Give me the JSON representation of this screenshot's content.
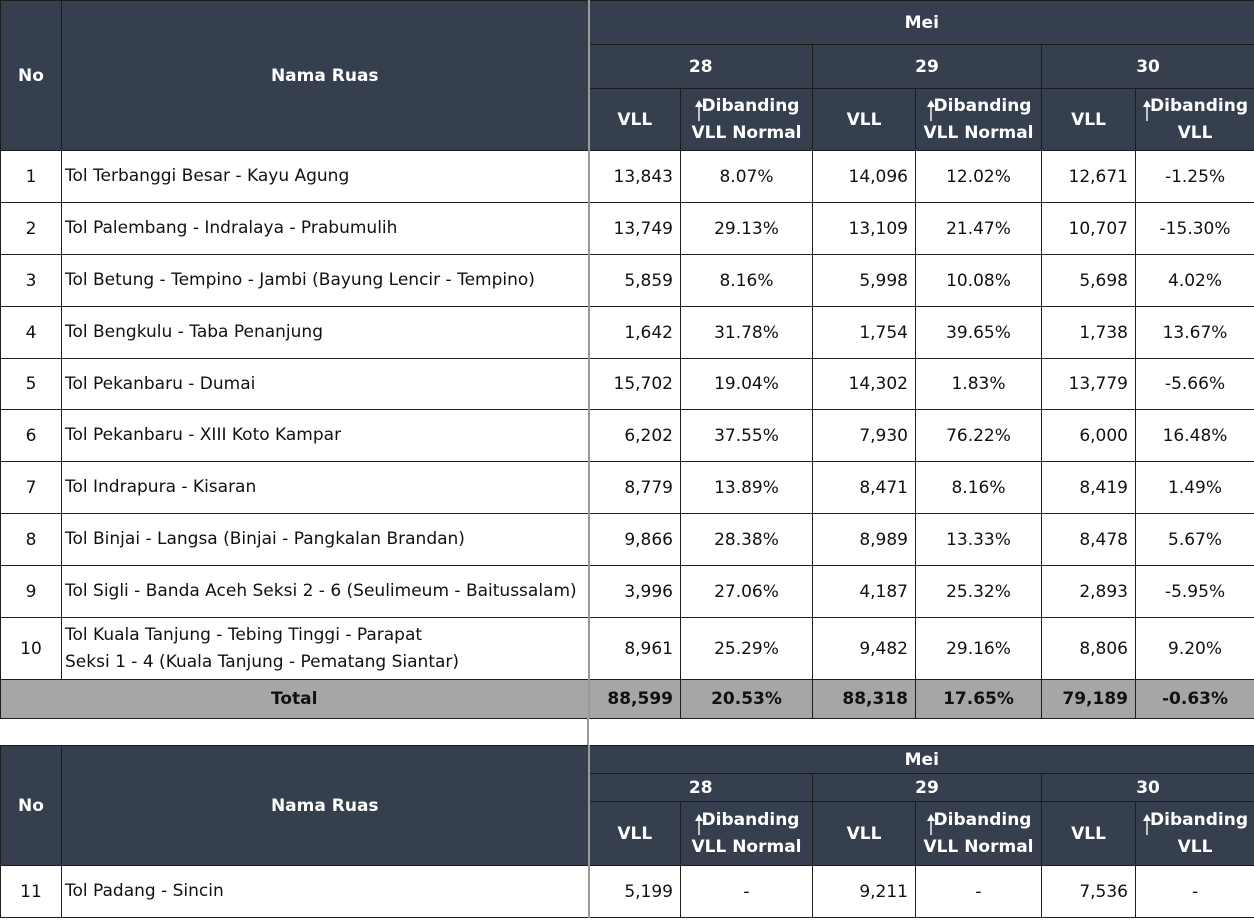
{
  "header": {
    "no": "No",
    "nama_ruas": "Nama Ruas",
    "month": "Mei",
    "days": [
      "28",
      "29",
      "30"
    ],
    "vll": "VLL",
    "cmp_normal_line1": "Dibanding",
    "cmp_normal_line2": "VLL Normal",
    "cmp_vll_line1": "Dibanding",
    "cmp_vll_line2": "VLL",
    "arrow_icon": "up-down-arrow-icon",
    "header_bg": "#353f4e",
    "total_bg": "#a6a6a6"
  },
  "table1": {
    "rows": [
      {
        "no": "1",
        "name": "Tol Terbanggi Besar - Kayu Agung",
        "v28": "13,843",
        "p28": "8.07%",
        "v29": "14,096",
        "p29": "12.02%",
        "v30": "12,671",
        "p30": "-1.25%"
      },
      {
        "no": "2",
        "name": "Tol Palembang - Indralaya - Prabumulih",
        "v28": "13,749",
        "p28": "29.13%",
        "v29": "13,109",
        "p29": "21.47%",
        "v30": "10,707",
        "p30": "-15.30%"
      },
      {
        "no": "3",
        "name": "Tol Betung - Tempino - Jambi (Bayung Lencir - Tempino)",
        "v28": "5,859",
        "p28": "8.16%",
        "v29": "5,998",
        "p29": "10.08%",
        "v30": "5,698",
        "p30": "4.02%"
      },
      {
        "no": "4",
        "name": "Tol Bengkulu - Taba Penanjung",
        "v28": "1,642",
        "p28": "31.78%",
        "v29": "1,754",
        "p29": "39.65%",
        "v30": "1,738",
        "p30": "13.67%"
      },
      {
        "no": "5",
        "name": "Tol Pekanbaru - Dumai",
        "v28": "15,702",
        "p28": "19.04%",
        "v29": "14,302",
        "p29": "1.83%",
        "v30": "13,779",
        "p30": "-5.66%"
      },
      {
        "no": "6",
        "name": "Tol Pekanbaru  - XIII Koto Kampar",
        "v28": "6,202",
        "p28": "37.55%",
        "v29": "7,930",
        "p29": "76.22%",
        "v30": "6,000",
        "p30": "16.48%"
      },
      {
        "no": "7",
        "name": "Tol Indrapura - Kisaran",
        "v28": "8,779",
        "p28": "13.89%",
        "v29": "8,471",
        "p29": "8.16%",
        "v30": "8,419",
        "p30": "1.49%"
      },
      {
        "no": "8",
        "name": "Tol Binjai - Langsa (Binjai - Pangkalan Brandan)",
        "v28": "9,866",
        "p28": "28.38%",
        "v29": "8,989",
        "p29": "13.33%",
        "v30": "8,478",
        "p30": "5.67%"
      },
      {
        "no": "9",
        "name": "Tol Sigli - Banda Aceh Seksi 2 - 6 (Seulimeum - Baitussalam)",
        "v28": "3,996",
        "p28": "27.06%",
        "v29": "4,187",
        "p29": "25.32%",
        "v30": "2,893",
        "p30": "-5.95%"
      },
      {
        "no": "10",
        "name": "Tol Kuala Tanjung - Tebing Tinggi - Parapat",
        "name2": "Seksi 1 - 4 (Kuala Tanjung - Pematang Siantar)",
        "v28": "8,961",
        "p28": "25.29%",
        "v29": "9,482",
        "p29": "29.16%",
        "v30": "8,806",
        "p30": "9.20%"
      }
    ],
    "total": {
      "label": "Total",
      "v28": "88,599",
      "p28": "20.53%",
      "v29": "88,318",
      "p29": "17.65%",
      "v30": "79,189",
      "p30": "-0.63%"
    }
  },
  "table2": {
    "rows": [
      {
        "no": "11",
        "name": "Tol Padang - Sincin",
        "v28": "5,199",
        "p28": "-",
        "v29": "9,211",
        "p29": "-",
        "v30": "7,536",
        "p30": "-"
      }
    ]
  }
}
